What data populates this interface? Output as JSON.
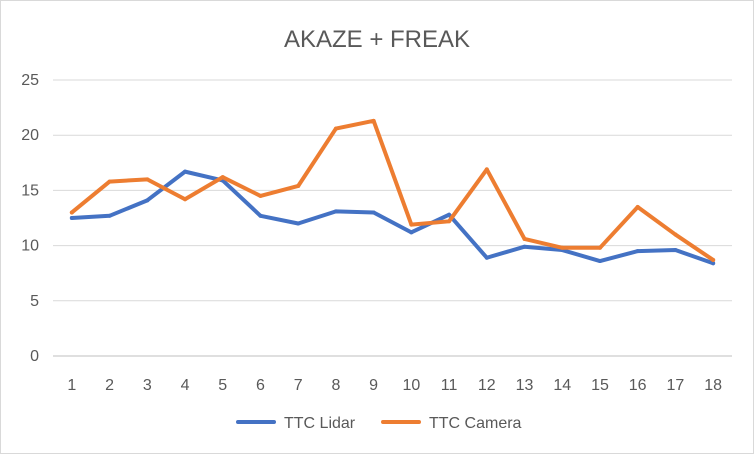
{
  "chart_data": {
    "type": "line",
    "title": "AKAZE + FREAK",
    "xlabel": "",
    "ylabel": "",
    "categories": [
      "1",
      "2",
      "3",
      "4",
      "5",
      "6",
      "7",
      "8",
      "9",
      "10",
      "11",
      "12",
      "13",
      "14",
      "15",
      "16",
      "17",
      "18"
    ],
    "ylim": [
      0,
      25
    ],
    "yticks": [
      0,
      5,
      10,
      15,
      20,
      25
    ],
    "grid": true,
    "legend_position": "bottom",
    "series": [
      {
        "name": "TTC Lidar",
        "color": "#4472c4",
        "values": [
          12.5,
          12.7,
          14.1,
          16.7,
          15.9,
          12.7,
          12.0,
          13.1,
          13.0,
          11.2,
          12.8,
          8.9,
          9.9,
          9.6,
          8.6,
          9.5,
          9.6,
          8.4
        ]
      },
      {
        "name": "TTC Camera",
        "color": "#ed7d31",
        "values": [
          13.0,
          15.8,
          16.0,
          14.2,
          16.2,
          14.5,
          15.4,
          20.6,
          21.3,
          11.9,
          12.2,
          16.9,
          10.6,
          9.8,
          9.8,
          13.5,
          11.0,
          8.7
        ]
      }
    ]
  }
}
